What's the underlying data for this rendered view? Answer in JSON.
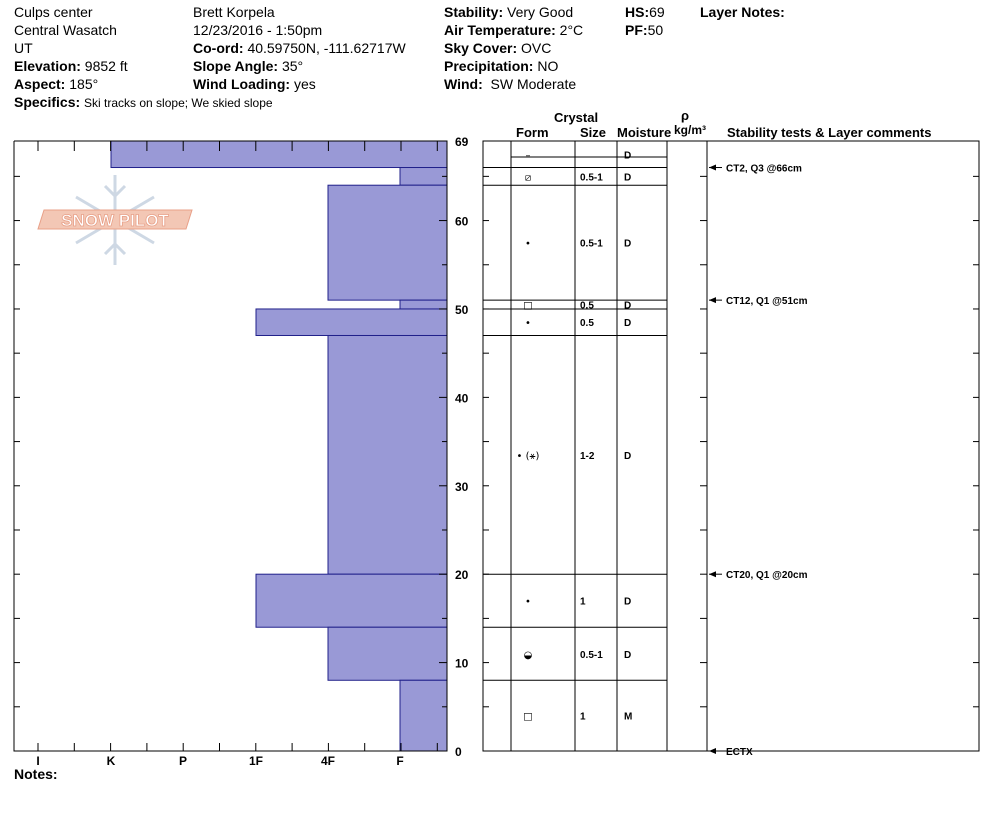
{
  "header": {
    "location": "Culps center",
    "range": "Central Wasatch",
    "state": "UT",
    "elevation_label": "Elevation:",
    "elevation_value": "9852 ft",
    "aspect_label": "Aspect:",
    "aspect_value": "185°",
    "specifics_label": "Specifics:",
    "specifics_value": "Ski tracks on slope; We skied slope",
    "observer": "Brett  Korpela",
    "datetime": "12/23/2016 - 1:50pm",
    "coord_label": "Co-ord:",
    "coord_value": "40.59750N, -111.62717W",
    "slope_label": "Slope Angle:",
    "slope_value": "35°",
    "wind_loading_label": "Wind Loading:",
    "wind_loading_value": "yes",
    "stability_label": "Stability:",
    "stability_value": "Very Good",
    "air_temp_label": "Air Temperature:",
    "air_temp_value": "2°C",
    "sky_label": "Sky Cover:",
    "sky_value": "OVC",
    "precip_label": "Precipitation:",
    "precip_value": "NO",
    "wind_label": "Wind:",
    "wind_value": "SW Moderate",
    "hs_label": "HS:",
    "hs_value": "69",
    "pf_label": "PF:",
    "pf_value": "50",
    "layer_notes_label": "Layer Notes:"
  },
  "logo": {
    "text": "SNOW PILOT",
    "color": "#e8a088"
  },
  "columns": {
    "crystal": "Crystal",
    "form": "Form",
    "size": "Size",
    "moisture": "Moisture",
    "rho": "ρ",
    "density_unit": "kg/m³",
    "stability_comments": "Stability tests & Layer comments"
  },
  "notes_label": "Notes:",
  "colors": {
    "bar": "#9999d6",
    "bar_stroke": "#20208a"
  },
  "chart_data": {
    "type": "bar",
    "title": "",
    "xlabel": "",
    "ylabel": "",
    "orientation": "horizontal",
    "hardness_categories": [
      "I",
      "K",
      "P",
      "1F",
      "4F",
      "F"
    ],
    "ylim": [
      0,
      69
    ],
    "y_ticks": [
      69,
      60,
      50,
      40,
      30,
      20,
      10,
      0
    ],
    "layers": [
      {
        "top": 69,
        "bottom": 66,
        "hardness": "K",
        "form": "–",
        "size": "",
        "moisture": "D"
      },
      {
        "top": 66,
        "bottom": 64,
        "hardness": "F",
        "form": "⧄",
        "size": "0.5-1",
        "moisture": "D"
      },
      {
        "top": 64,
        "bottom": 51,
        "hardness": "4F",
        "form": "•",
        "size": "0.5-1",
        "moisture": "D"
      },
      {
        "top": 51,
        "bottom": 50,
        "hardness": "F",
        "form": "□",
        "size": "0.5",
        "moisture": "D"
      },
      {
        "top": 50,
        "bottom": 47,
        "hardness": "1F",
        "form": "•",
        "size": "0.5",
        "moisture": "D"
      },
      {
        "top": 47,
        "bottom": 20,
        "hardness": "4F",
        "form": "• (⚹)",
        "size": "1-2",
        "moisture": "D"
      },
      {
        "top": 20,
        "bottom": 14,
        "hardness": "1F",
        "form": "•",
        "size": "1",
        "moisture": "D"
      },
      {
        "top": 14,
        "bottom": 8,
        "hardness": "4F",
        "form": "◒",
        "size": "0.5-1",
        "moisture": "D"
      },
      {
        "top": 8,
        "bottom": 0,
        "hardness": "F",
        "form": "□",
        "size": "1",
        "moisture": "M"
      }
    ],
    "tests": [
      {
        "height": 66,
        "label": "CT2, Q3 @66cm"
      },
      {
        "height": 51,
        "label": "CT12, Q1 @51cm"
      },
      {
        "height": 20,
        "label": "CT20, Q1 @20cm"
      },
      {
        "height": 0,
        "label": "ECTX"
      }
    ]
  }
}
